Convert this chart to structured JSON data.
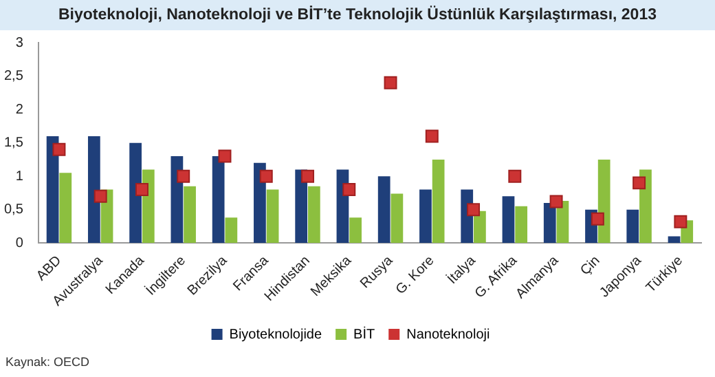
{
  "chart_data": {
    "type": "bar",
    "title": "Biyoteknoloji, Nanoteknoloji ve BİT’te Teknolojik Üstünlük Karşılaştırması, 2013",
    "categories": [
      "ABD",
      "Avustralya",
      "Kanada",
      "İngiltere",
      "Brezilya",
      "Fransa",
      "Hindistan",
      "Meksika",
      "Rusya",
      "G. Kore",
      "İtalya",
      "G. Afrika",
      "Almanya",
      "Çin",
      "Japonya",
      "Türkiye"
    ],
    "series": [
      {
        "name": "Biyoteknolojide",
        "color": "#1f3f7a",
        "values": [
          1.6,
          1.6,
          1.5,
          1.3,
          1.3,
          1.2,
          1.1,
          1.1,
          1.0,
          0.8,
          0.8,
          0.7,
          0.6,
          0.5,
          0.5,
          0.1
        ]
      },
      {
        "name": "BİT",
        "color": "#8cbf3f",
        "values": [
          1.05,
          0.8,
          1.1,
          0.85,
          0.38,
          0.8,
          0.85,
          0.38,
          0.74,
          1.25,
          0.48,
          0.55,
          0.63,
          1.25,
          1.1,
          0.34
        ]
      },
      {
        "name": "Nanoteknoloji",
        "type": "scatter",
        "color": "#cc3333",
        "values": [
          1.4,
          0.7,
          0.8,
          1.0,
          1.3,
          1.0,
          1.0,
          0.8,
          2.4,
          1.6,
          0.5,
          1.0,
          0.62,
          0.36,
          0.9,
          0.32
        ]
      }
    ],
    "ylim": [
      0,
      3
    ],
    "yticks": [
      0,
      {
        "value": 0.5,
        "label": "0,5"
      },
      1,
      {
        "value": 1.5,
        "label": "1,5"
      },
      2,
      {
        "value": 2.5,
        "label": "2,5"
      },
      3
    ],
    "grid": false,
    "legend": "bottom",
    "marker": "square",
    "annotations": [
      "Kaynak: OECD"
    ]
  }
}
